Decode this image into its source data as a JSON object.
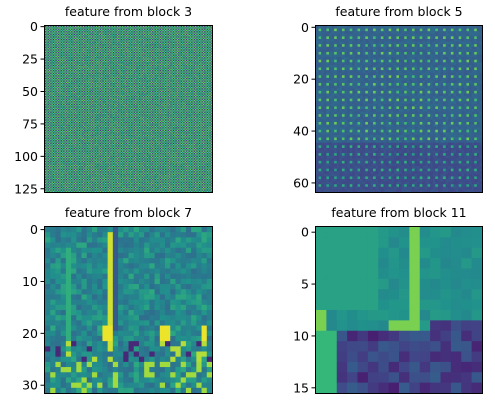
{
  "chart_data": [
    {
      "type": "heatmap",
      "title": "feature from block 3",
      "grid_size": 128,
      "pattern": "fine periodic checkerboard (teal/yellow-green with dark dots)",
      "yticks": [
        "0",
        "25",
        "50",
        "75",
        "100",
        "125"
      ],
      "ytick_values": [
        0,
        25,
        50,
        75,
        100,
        125
      ],
      "colormap": "viridis"
    },
    {
      "type": "heatmap",
      "title": "feature from block 5",
      "grid_size": 64,
      "pattern": "periodic dotted grid, darker lower third",
      "yticks": [
        "0",
        "20",
        "40",
        "60"
      ],
      "ytick_values": [
        0,
        20,
        40,
        60
      ],
      "colormap": "viridis"
    },
    {
      "type": "heatmap",
      "title": "feature from block 7",
      "grid_size": 32,
      "pattern": "noisy teal field with bright vertical stripe near x=13 and dark band near row 24",
      "yticks": [
        "0",
        "10",
        "20",
        "30"
      ],
      "ytick_values": [
        0,
        10,
        20,
        30
      ],
      "colormap": "viridis"
    },
    {
      "type": "heatmap",
      "title": "feature from block 11",
      "grid_size": 16,
      "pattern": "green upper region with bright L-shaped border, dark purple lower-right block",
      "yticks": [
        "0",
        "5",
        "10",
        "15"
      ],
      "ytick_values": [
        0,
        5,
        10,
        15
      ],
      "colormap": "viridis"
    }
  ]
}
